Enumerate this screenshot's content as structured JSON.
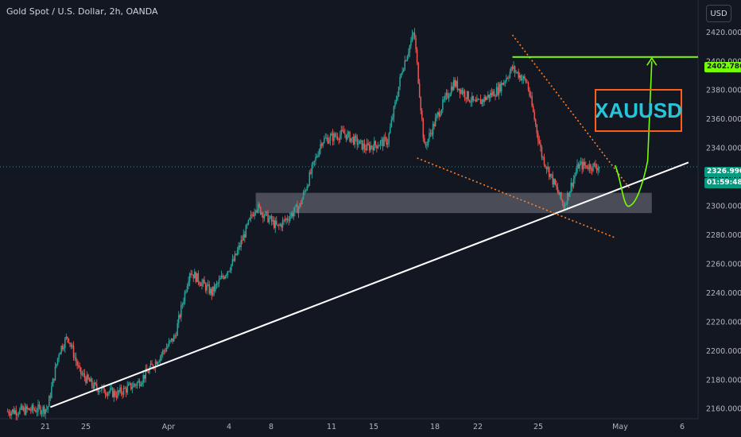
{
  "header": {
    "title": "Gold Spot / U.S. Dollar, 2h, OANDA"
  },
  "currency_label": "USD",
  "symbol_label": "XAUUSD",
  "target_price_label": "2402.786",
  "current_price_label": "2326.990",
  "countdown_label": "01:59:48",
  "colors": {
    "background": "#131722",
    "up": "#26a69a",
    "down": "#ef5350",
    "trendline": "#ffffff",
    "channel": "#ff7f2a",
    "target": "#76ff03",
    "symbol_text": "#26c6da",
    "symbol_border": "#ff5d1a"
  },
  "chart_data": {
    "type": "candlestick",
    "instrument": "Gold Spot / U.S. Dollar",
    "timeframe": "2h",
    "source": "OANDA",
    "y_axis": {
      "range": [
        2153,
        2435
      ],
      "ticks": [
        2420,
        2400,
        2380,
        2360,
        2340,
        2320,
        2300,
        2280,
        2260,
        2240,
        2220,
        2200,
        2180,
        2160
      ]
    },
    "x_axis": {
      "labels": [
        "21",
        "25",
        "Apr",
        "4",
        "8",
        "11",
        "15",
        "18",
        "22",
        "25",
        "May",
        "6"
      ]
    },
    "price_path": [
      {
        "t": 0,
        "price": 2158
      },
      {
        "t": 2.8,
        "price": 2160
      },
      {
        "t": 3.6,
        "price": 2200
      },
      {
        "t": 4.2,
        "price": 2210
      },
      {
        "t": 5,
        "price": 2185
      },
      {
        "t": 6,
        "price": 2175
      },
      {
        "t": 7.5,
        "price": 2170
      },
      {
        "t": 9,
        "price": 2178
      },
      {
        "t": 10,
        "price": 2190
      },
      {
        "t": 11.5,
        "price": 2210
      },
      {
        "t": 12.5,
        "price": 2255
      },
      {
        "t": 14,
        "price": 2240
      },
      {
        "t": 15.5,
        "price": 2262
      },
      {
        "t": 17,
        "price": 2300
      },
      {
        "t": 18.5,
        "price": 2285
      },
      {
        "t": 20,
        "price": 2300
      },
      {
        "t": 21.5,
        "price": 2345
      },
      {
        "t": 23,
        "price": 2350
      },
      {
        "t": 24.5,
        "price": 2340
      },
      {
        "t": 26,
        "price": 2345
      },
      {
        "t": 27,
        "price": 2395
      },
      {
        "t": 27.8,
        "price": 2420
      },
      {
        "t": 28.5,
        "price": 2340
      },
      {
        "t": 29.5,
        "price": 2365
      },
      {
        "t": 30.5,
        "price": 2385
      },
      {
        "t": 32,
        "price": 2370
      },
      {
        "t": 33.5,
        "price": 2380
      },
      {
        "t": 34.5,
        "price": 2395
      },
      {
        "t": 35.5,
        "price": 2385
      },
      {
        "t": 36.5,
        "price": 2335
      },
      {
        "t": 38,
        "price": 2300
      },
      {
        "t": 39,
        "price": 2328
      },
      {
        "t": 40.5,
        "price": 2327
      }
    ],
    "annotations": [
      {
        "type": "trendline",
        "color": "white",
        "from": {
          "t": 3,
          "price": 2161
        },
        "to": {
          "t": 46.5,
          "price": 2330
        }
      },
      {
        "type": "support_zone",
        "color": "grey",
        "from_t": 17,
        "to_t": 44,
        "price_range": [
          2295,
          2309
        ]
      },
      {
        "type": "channel_line",
        "style": "dotted",
        "color": "orange",
        "from": {
          "t": 34.5,
          "price": 2418
        },
        "to": {
          "t": 42.5,
          "price": 2312
        }
      },
      {
        "type": "channel_line",
        "style": "dotted",
        "color": "orange",
        "from": {
          "t": 28,
          "price": 2333
        },
        "to": {
          "t": 41.5,
          "price": 2278
        }
      },
      {
        "type": "target_level",
        "color": "green",
        "price": 2402.786,
        "from_t": 34.5
      },
      {
        "type": "projection_path",
        "color": "green",
        "points": [
          {
            "t": 41.5,
            "price": 2328
          },
          {
            "t": 42.5,
            "price": 2300
          },
          {
            "t": 43.5,
            "price": 2320
          },
          {
            "t": 44,
            "price": 2402
          }
        ]
      }
    ]
  }
}
